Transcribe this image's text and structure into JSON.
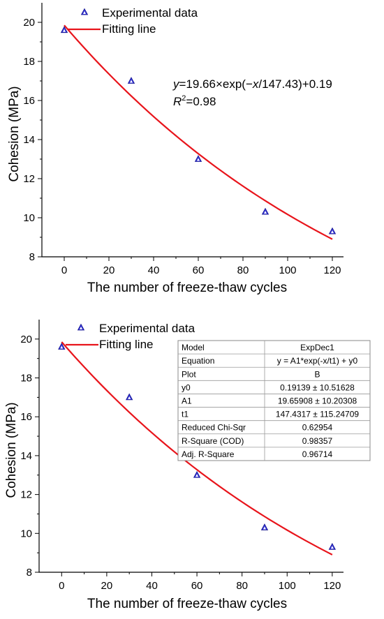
{
  "chart_data": [
    {
      "type": "scatter",
      "xlabel": "The number of freeze-thaw cycles",
      "ylabel": "Cohesion (MPa)",
      "xlim": [
        -10,
        125
      ],
      "ylim": [
        8,
        21
      ],
      "xticks": [
        0,
        20,
        40,
        60,
        80,
        100,
        120
      ],
      "yticks": [
        8,
        10,
        12,
        14,
        16,
        18,
        20
      ],
      "legend_position": "top-left",
      "grid": false,
      "series": [
        {
          "name": "Experimental data",
          "marker": "triangle",
          "color": "#2f2fd0",
          "x": [
            0,
            30,
            60,
            90,
            120
          ],
          "y": [
            19.6,
            17.0,
            13.0,
            10.3,
            9.3
          ]
        },
        {
          "name": "Fitting line",
          "kind": "line",
          "color": "#e8141b",
          "fit": {
            "a": 19.66,
            "t": 147.43,
            "y0": 0.19
          },
          "x_range": [
            0,
            120
          ]
        }
      ],
      "annotation": {
        "equation": "y=19.66×exp(−x/147.43)+0.19",
        "r2": "R2=0.98"
      }
    },
    {
      "type": "scatter",
      "xlabel": "The number of freeze-thaw cycles",
      "ylabel": "Cohesion (MPa)",
      "xlim": [
        -10,
        125
      ],
      "ylim": [
        8,
        21
      ],
      "xticks": [
        0,
        20,
        40,
        60,
        80,
        100,
        120
      ],
      "yticks": [
        8,
        10,
        12,
        14,
        16,
        18,
        20
      ],
      "legend_position": "top-left",
      "grid": false,
      "series": [
        {
          "name": "Experimental data",
          "marker": "triangle",
          "color": "#2f2fd0",
          "x": [
            0,
            30,
            60,
            90,
            120
          ],
          "y": [
            19.6,
            17.0,
            13.0,
            10.3,
            9.3
          ]
        },
        {
          "name": "Fitting line",
          "kind": "line",
          "color": "#e8141b",
          "fit": {
            "a": 19.65908,
            "t": 147.4317,
            "y0": 0.19139
          },
          "x_range": [
            0,
            120
          ]
        }
      ],
      "fit_table": [
        [
          "Model",
          "ExpDec1"
        ],
        [
          "Equation",
          "y = A1*exp(-x/t1) + y0"
        ],
        [
          "Plot",
          "B"
        ],
        [
          "y0",
          "0.19139 ± 10.51628"
        ],
        [
          "A1",
          "19.65908 ± 10.20308"
        ],
        [
          "t1",
          "147.4317 ± 115.24709"
        ],
        [
          "Reduced Chi-Sqr",
          "0.62954"
        ],
        [
          "R-Square (COD)",
          "0.98357"
        ],
        [
          "Adj. R-Square",
          "0.96714"
        ]
      ]
    }
  ]
}
